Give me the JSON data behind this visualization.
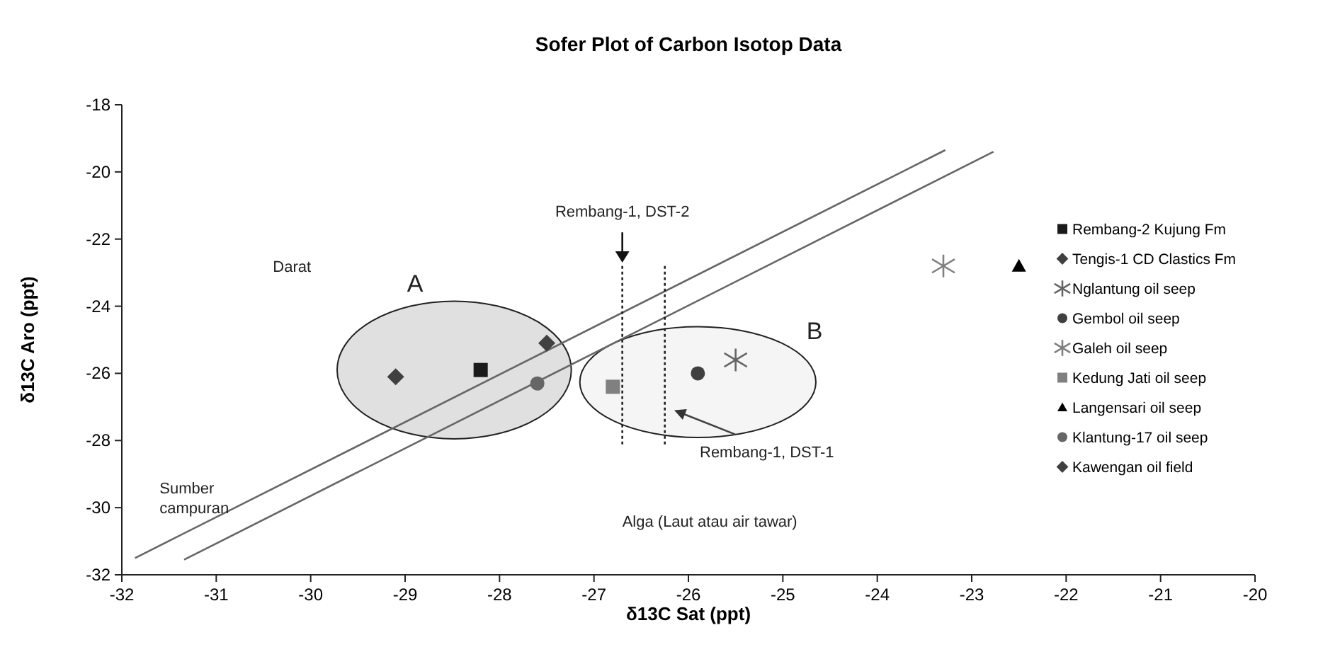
{
  "chart_data": {
    "type": "scatter",
    "title": "Sofer Plot of Carbon Isotop Data",
    "xlabel": "δ13C Sat (ppt)",
    "ylabel": "δ13C Aro (ppt)",
    "xlim": [
      -32,
      -20
    ],
    "xticks": [
      -32,
      -31,
      -30,
      -29,
      -28,
      -27,
      -26,
      -25,
      -24,
      -23,
      -22,
      -21,
      -20
    ],
    "ylim": [
      -32,
      -18
    ],
    "yticks": [
      -32,
      -30,
      -28,
      -26,
      -24,
      -22,
      -20,
      -18
    ],
    "legend": "right",
    "series": [
      {
        "name": "Rembang-2 Kujung Fm",
        "color": "#1a1a1a",
        "marker": "square",
        "x": [
          -28.2
        ],
        "values": [
          -25.9
        ]
      },
      {
        "name": "Tengis-1 CD Clastics Fm",
        "color": "#404040",
        "marker": "diamond",
        "x": [
          -29.1
        ],
        "values": [
          -26.1
        ]
      },
      {
        "name": "Nglantung oil seep",
        "color": "#666666",
        "marker": "cross",
        "x": [
          -25.5
        ],
        "values": [
          -25.6
        ]
      },
      {
        "name": "Gembol oil seep",
        "color": "#404040",
        "marker": "circle",
        "x": [
          -25.9
        ],
        "values": [
          -26.0
        ]
      },
      {
        "name": "Galeh oil seep",
        "color": "#808080",
        "marker": "cross",
        "x": [
          -23.3
        ],
        "values": [
          -22.8
        ]
      },
      {
        "name": "Kedung Jati oil seep",
        "color": "#808080",
        "marker": "square",
        "x": [
          -26.8
        ],
        "values": [
          -26.4
        ]
      },
      {
        "name": "Langensari oil seep",
        "color": "#000000",
        "marker": "triangle",
        "x": [
          -22.5
        ],
        "values": [
          -22.8
        ]
      },
      {
        "name": "Klantung-17 oil seep",
        "color": "#666666",
        "marker": "circle",
        "x": [
          -27.6
        ],
        "values": [
          -26.3
        ]
      },
      {
        "name": "Kawengan oil field",
        "color": "#404040",
        "marker": "diamond",
        "x": [
          -27.5
        ],
        "values": [
          -25.1
        ]
      },
      {
        "type": "line",
        "color": "#666666",
        "line_style": "solid",
        "marker": "none",
        "x": [
          -31.86,
          -23.28
        ],
        "values": [
          -31.5,
          -19.35
        ]
      },
      {
        "type": "line",
        "color": "#666666",
        "line_style": "solid",
        "marker": "none",
        "x": [
          -31.34,
          -22.77
        ],
        "values": [
          -31.55,
          -19.4
        ]
      },
      {
        "type": "line",
        "color": "#222222",
        "line_style": "dotted",
        "marker": "none",
        "x": [
          -26.7,
          -26.7
        ],
        "values": [
          -22.8,
          -28.2
        ]
      },
      {
        "type": "line",
        "color": "#222222",
        "line_style": "dotted",
        "marker": "none",
        "x": [
          -26.25,
          -26.25
        ],
        "values": [
          -22.8,
          -28.2
        ]
      }
    ],
    "annotations": [
      "Darat",
      "A",
      "B",
      "Rembang-1, DST-2",
      "Rembang-1, DST-1",
      "Sumber",
      "campuran",
      "Alga (Laut atau air tawar)"
    ]
  }
}
